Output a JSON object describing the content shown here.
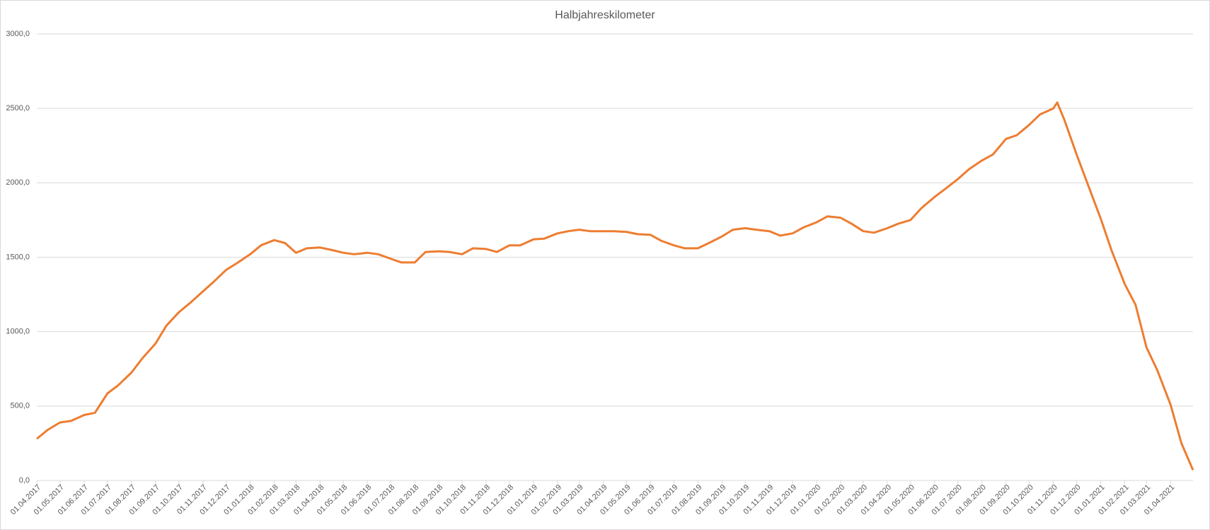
{
  "chart_data": {
    "type": "line",
    "title": "Halbjahreskilometer",
    "x": [
      "01.04.2017",
      "15.04.2017",
      "01.05.2017",
      "15.05.2017",
      "01.06.2017",
      "15.06.2017",
      "01.07.2017",
      "15.07.2017",
      "01.08.2017",
      "15.08.2017",
      "01.09.2017",
      "15.09.2017",
      "01.10.2017",
      "15.10.2017",
      "01.11.2017",
      "15.11.2017",
      "01.12.2017",
      "15.12.2017",
      "01.01.2018",
      "15.01.2018",
      "01.02.2018",
      "15.02.2018",
      "01.03.2018",
      "15.03.2018",
      "01.04.2018",
      "15.04.2018",
      "01.05.2018",
      "15.05.2018",
      "01.06.2018",
      "15.06.2018",
      "01.07.2018",
      "15.07.2018",
      "01.08.2018",
      "15.08.2018",
      "01.09.2018",
      "15.09.2018",
      "01.10.2018",
      "15.10.2018",
      "01.11.2018",
      "15.11.2018",
      "01.12.2018",
      "15.12.2018",
      "01.01.2019",
      "15.01.2019",
      "01.02.2019",
      "15.02.2019",
      "01.03.2019",
      "15.03.2019",
      "01.04.2019",
      "15.04.2019",
      "01.05.2019",
      "15.05.2019",
      "01.06.2019",
      "15.06.2019",
      "01.07.2019",
      "15.07.2019",
      "01.08.2019",
      "15.08.2019",
      "01.09.2019",
      "15.09.2019",
      "01.10.2019",
      "15.10.2019",
      "01.11.2019",
      "15.11.2019",
      "01.12.2019",
      "15.12.2019",
      "01.01.2020",
      "15.01.2020",
      "01.02.2020",
      "15.02.2020",
      "01.03.2020",
      "15.03.2020",
      "01.04.2020",
      "15.04.2020",
      "01.05.2020",
      "15.05.2020",
      "01.06.2020",
      "15.06.2020",
      "01.07.2020",
      "15.07.2020",
      "01.08.2020",
      "15.08.2020",
      "01.09.2020",
      "15.09.2020",
      "01.10.2020",
      "15.10.2020",
      "01.11.2020",
      "06.11.2020",
      "15.11.2020",
      "01.12.2020",
      "15.12.2020",
      "01.01.2021",
      "15.01.2021",
      "01.02.2021",
      "15.02.2021",
      "01.03.2021",
      "15.03.2021",
      "01.04.2021",
      "15.04.2021",
      "30.04.2021"
    ],
    "series": [
      {
        "name": "Halbjahreskilometer",
        "color": "#ed7d31",
        "values": [
          280,
          340,
          390,
          400,
          440,
          455,
          585,
          640,
          725,
          820,
          920,
          1040,
          1130,
          1190,
          1270,
          1335,
          1415,
          1460,
          1520,
          1580,
          1615,
          1595,
          1530,
          1560,
          1565,
          1550,
          1530,
          1520,
          1530,
          1520,
          1490,
          1465,
          1465,
          1535,
          1540,
          1535,
          1520,
          1560,
          1555,
          1535,
          1580,
          1580,
          1620,
          1625,
          1660,
          1675,
          1685,
          1675,
          1675,
          1675,
          1670,
          1655,
          1650,
          1610,
          1580,
          1560,
          1560,
          1595,
          1640,
          1685,
          1695,
          1685,
          1675,
          1645,
          1660,
          1700,
          1735,
          1775,
          1765,
          1725,
          1675,
          1665,
          1695,
          1725,
          1750,
          1830,
          1905,
          1960,
          2025,
          2090,
          2150,
          2190,
          2295,
          2320,
          2390,
          2460,
          2500,
          2540,
          2425,
          2190,
          1995,
          1760,
          1545,
          1320,
          1180,
          895,
          740,
          510,
          250,
          70
        ]
      }
    ],
    "xlim": [
      "01.04.2017",
      "30.04.2021"
    ],
    "xticks": [
      "01.04.2017",
      "01.05.2017",
      "01.06.2017",
      "01.07.2017",
      "01.08.2017",
      "01.09.2017",
      "01.10.2017",
      "01.11.2017",
      "01.12.2017",
      "01.01.2018",
      "01.02.2018",
      "01.03.2018",
      "01.04.2018",
      "01.05.2018",
      "01.06.2018",
      "01.07.2018",
      "01.08.2018",
      "01.09.2018",
      "01.10.2018",
      "01.11.2018",
      "01.12.2018",
      "01.01.2019",
      "01.02.2019",
      "01.03.2019",
      "01.04.2019",
      "01.05.2019",
      "01.06.2019",
      "01.07.2019",
      "01.08.2019",
      "01.09.2019",
      "01.10.2019",
      "01.11.2019",
      "01.12.2019",
      "01.01.2020",
      "01.02.2020",
      "01.03.2020",
      "01.04.2020",
      "01.05.2020",
      "01.06.2020",
      "01.07.2020",
      "01.08.2020",
      "01.09.2020",
      "01.10.2020",
      "01.11.2020",
      "01.12.2020",
      "01.01.2021",
      "01.02.2021",
      "01.03.2021",
      "01.04.2021"
    ],
    "ylim": [
      0,
      3000
    ],
    "yticks": [
      {
        "value": 0,
        "label": "0,0"
      },
      {
        "value": 500,
        "label": "500,0"
      },
      {
        "value": 1000,
        "label": "1000,0"
      },
      {
        "value": 1500,
        "label": "1500,0"
      },
      {
        "value": 2000,
        "label": "2000,0"
      },
      {
        "value": 2500,
        "label": "2500,0"
      },
      {
        "value": 3000,
        "label": "3000,0"
      }
    ],
    "grid": true
  }
}
